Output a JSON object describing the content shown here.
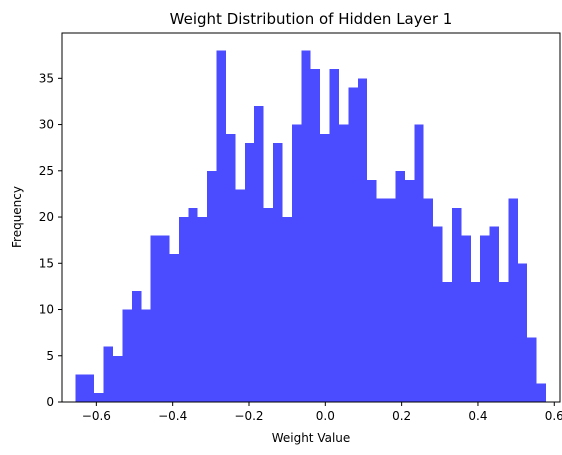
{
  "chart_data": {
    "type": "bar",
    "title": "Weight Distribution of Hidden Layer 1",
    "xlabel": "Weight Value",
    "ylabel": "Frequency",
    "xlim": [
      -0.69,
      0.615
    ],
    "ylim": [
      0,
      39.9
    ],
    "bin_start": -0.655,
    "bin_width": 0.02467,
    "values": [
      3,
      3,
      1,
      6,
      5,
      10,
      12,
      10,
      18,
      18,
      16,
      20,
      21,
      20,
      25,
      38,
      29,
      23,
      28,
      32,
      21,
      28,
      20,
      30,
      38,
      36,
      29,
      36,
      30,
      34,
      35,
      24,
      22,
      22,
      25,
      24,
      30,
      22,
      19,
      13,
      21,
      18,
      13,
      18,
      19,
      13,
      22,
      15,
      7,
      2
    ],
    "x_ticks": [
      -0.6,
      -0.4,
      -0.2,
      0.0,
      0.2,
      0.4,
      0.6
    ],
    "x_tick_labels": [
      "−0.6",
      "−0.4",
      "−0.2",
      "0.0",
      "0.2",
      "0.4",
      "0.6"
    ],
    "y_ticks": [
      0,
      5,
      10,
      15,
      20,
      25,
      30,
      35
    ],
    "y_tick_labels": [
      "0",
      "5",
      "10",
      "15",
      "20",
      "25",
      "30",
      "35"
    ],
    "grid": false,
    "colors": {
      "bar": "#4b4bff",
      "axis": "#000000",
      "background": "#ffffff"
    }
  }
}
